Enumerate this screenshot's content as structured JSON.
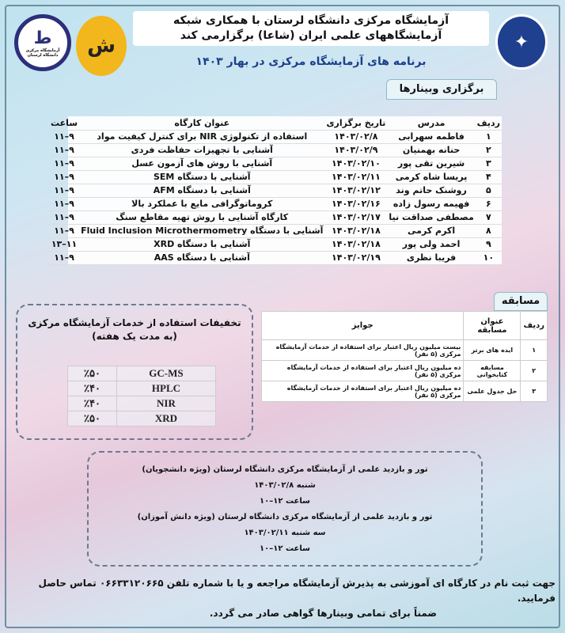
{
  "header": {
    "title_line1": "آزمایشگاه مرکزی دانشگاه لرستان با همکاری شبکه",
    "title_line2": "آزمایشگاههای علمی ایران (شاعا) برگزارمی کند",
    "subtitle": "برنامه های آزمایشگاه مرکزی در بهار ۱۴۰۳"
  },
  "logos": {
    "left_caption": "آزمایشگاه مرکزی دانشگاه لرستان",
    "colors": {
      "navy": "#2c2f7a",
      "gold": "#f1b71c"
    }
  },
  "webinars": {
    "tab": "برگزاری وبینارها",
    "headers": [
      "ردیف",
      "مدرس",
      "تاریخ برگزاری",
      "عنوان کارگاه",
      "ساعت"
    ],
    "rows": [
      [
        "۱",
        "فاطمه سهرابی",
        "۱۴۰۳/۰۲/۸",
        "استفاده از تکنولوژی NIR برای کنترل کیفیت مواد",
        "۹–۱۱"
      ],
      [
        "۲",
        "حنانه بهمنیان",
        "۱۴۰۳/۰۲/۹",
        "آشنایی با تجهیزات حفاظت فردی",
        "۹–۱۱"
      ],
      [
        "۳",
        "شیرین تقی پور",
        "۱۴۰۳/۰۲/۱۰",
        "آشنایی با روش های آزمون عسل",
        "۹–۱۱"
      ],
      [
        "۴",
        "پریسا شاه کرمی",
        "۱۴۰۳/۰۲/۱۱",
        "آشنایی با دستگاه SEM",
        "۹–۱۱"
      ],
      [
        "۵",
        "روشنک حاتم وند",
        "۱۴۰۳/۰۲/۱۲",
        "آشنایی با دستگاه AFM",
        "۹–۱۱"
      ],
      [
        "۶",
        "فهیمه رسول زاده",
        "۱۴۰۳/۰۲/۱۶",
        "کروماتوگرافی مایع با عملکرد بالا",
        "۹–۱۱"
      ],
      [
        "۷",
        "مصطفی صداقت نیا",
        "۱۴۰۳/۰۲/۱۷",
        "کارگاه آشنایی با روش تهیه مقاطع سنگ",
        "۹–۱۱"
      ],
      [
        "۸",
        "اکرم کرمی",
        "۱۴۰۳/۰۲/۱۸",
        "آشنایی با دستگاه Fluid Inclusion Microthermometry",
        "۹–۱۱"
      ],
      [
        "۹",
        "احمد ولی پور",
        "۱۴۰۳/۰۲/۱۸",
        "آشنایی با دستگاه XRD",
        "۱۱–۱۳"
      ],
      [
        "۱۰",
        "فریبا نظری",
        "۱۴۰۳/۰۲/۱۹",
        "آشنایی با دستگاه AAS",
        "۹–۱۱"
      ]
    ]
  },
  "competition": {
    "tab": "مسابقه",
    "headers": [
      "ردیف",
      "عنوان مسابقه",
      "جوایز"
    ],
    "rows": [
      [
        "۱",
        "ایده های برتر",
        "بیست میلیون ریال اعتبار برای استفاده از خدمات آزمایشگاه مرکزی (۵ نفر)"
      ],
      [
        "۲",
        "مسابقه کتابخوانی",
        "ده میلیون ریال اعتبار برای استفاده از خدمات آزمایشگاه مرکزی (۵ نفر)"
      ],
      [
        "۳",
        "حل جدول علمی",
        "ده میلیون ریال اعتبار برای استفاده از خدمات آزمایشگاه مرکزی (۵ نفر)"
      ]
    ]
  },
  "discounts": {
    "title": "تخفیفات استفاده از خدمات آزمایشگاه مرکزی",
    "subtitle": "(به مدت یک هفته)",
    "rows": [
      [
        "GC-MS",
        "٪۵۰"
      ],
      [
        "HPLC",
        "٪۴۰"
      ],
      [
        "NIR",
        "٪۴۰"
      ],
      [
        "XRD",
        "٪۵۰"
      ]
    ]
  },
  "tours": {
    "lines": [
      "تور و بازدید علمی از آزمایشگاه مرکزی دانشگاه لرستان (ویژه دانشجویان)",
      "شنبه ۱۴۰۳/۰۲/۸",
      "ساعت ۱۲–۱۰",
      "تور و بازدید علمی از آزمایشگاه مرکزی دانشگاه لرستان (ویژه دانش آموزان)",
      "سه شنبه ۱۴۰۳/۰۲/۱۱",
      "ساعت ۱۲–۱۰"
    ]
  },
  "footer": {
    "line1": "جهت ثبت نام در کارگاه ای آموزشی به پذیرش آزمایشگاه مراجعه و یا با شماره تلفن ۰۶۶۳۳۱۲۰۶۶۵ تماس حاصل فرمایید.",
    "line2": "ضمناً برای تمامی وبینارها گواهی صادر می گردد."
  }
}
